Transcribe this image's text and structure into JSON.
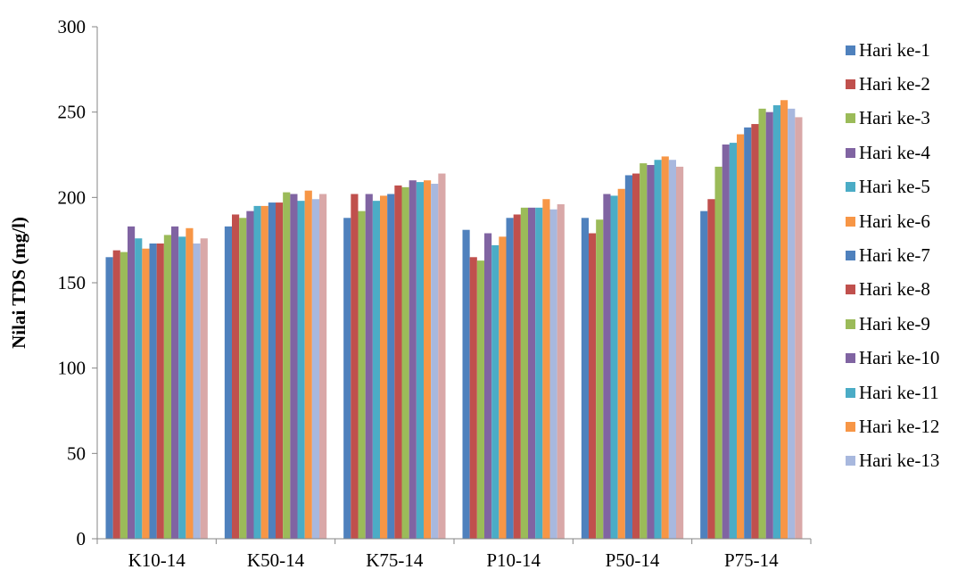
{
  "chart_data": {
    "type": "bar",
    "title": "",
    "xlabel": "",
    "ylabel": "Nilai TDS (mg/l)",
    "ylim": [
      0,
      300
    ],
    "yticks": [
      0,
      50,
      100,
      150,
      200,
      250,
      300
    ],
    "grid": false,
    "legend_position": "right",
    "categories": [
      "K10-14",
      "K50-14",
      "K75-14",
      "P10-14",
      "P50-14",
      "P75-14"
    ],
    "series": [
      {
        "name": "Hari ke-1",
        "color": "#4f81bd",
        "values": [
          165,
          183,
          188,
          181,
          188,
          192
        ]
      },
      {
        "name": "Hari ke-2",
        "color": "#c0504d",
        "values": [
          169,
          190,
          202,
          165,
          179,
          199
        ]
      },
      {
        "name": "Hari ke-3",
        "color": "#9bbb59",
        "values": [
          168,
          188,
          192,
          163,
          187,
          218
        ]
      },
      {
        "name": "Hari ke-4",
        "color": "#8064a2",
        "values": [
          183,
          192,
          202,
          179,
          202,
          231
        ]
      },
      {
        "name": "Hari ke-5",
        "color": "#4bacc6",
        "values": [
          176,
          195,
          198,
          172,
          201,
          232
        ]
      },
      {
        "name": "Hari ke-6",
        "color": "#f79646",
        "values": [
          170,
          195,
          201,
          177,
          205,
          237
        ]
      },
      {
        "name": "Hari ke-7",
        "color": "#4f81bd",
        "values": [
          173,
          197,
          202,
          188,
          213,
          241
        ]
      },
      {
        "name": "Hari ke-8",
        "color": "#c0504d",
        "values": [
          173,
          197,
          207,
          190,
          214,
          243
        ]
      },
      {
        "name": "Hari ke-9",
        "color": "#9bbb59",
        "values": [
          178,
          203,
          206,
          194,
          220,
          252
        ]
      },
      {
        "name": "Hari ke-10",
        "color": "#8064a2",
        "values": [
          183,
          202,
          210,
          194,
          219,
          250
        ]
      },
      {
        "name": "Hari ke-11",
        "color": "#4bacc6",
        "values": [
          177,
          198,
          209,
          194,
          222,
          254
        ]
      },
      {
        "name": "Hari ke-12",
        "color": "#f79646",
        "values": [
          182,
          204,
          210,
          199,
          224,
          257
        ]
      },
      {
        "name": "Hari ke-13",
        "color": "#a8b8de",
        "values": [
          173,
          199,
          208,
          193,
          222,
          252
        ]
      },
      {
        "color": "#d9a8a8",
        "values": [
          176,
          202,
          214,
          196,
          218,
          247
        ]
      }
    ]
  }
}
